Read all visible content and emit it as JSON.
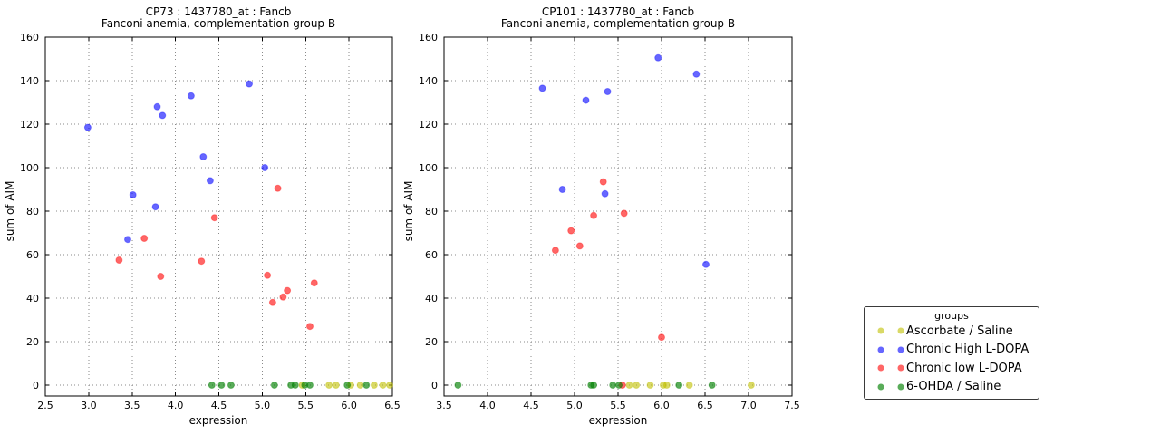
{
  "legend": {
    "title": "groups",
    "entries": [
      {
        "label": "Ascorbate / Saline",
        "color": "#bfbf00",
        "alpha": 0.6
      },
      {
        "label": "Chronic High L-DOPA",
        "color": "#0000ff",
        "alpha": 0.6
      },
      {
        "label": "Chronic low L-DOPA",
        "color": "#ff0000",
        "alpha": 0.6
      },
      {
        "label": "6-OHDA / Saline",
        "color": "#008000",
        "alpha": 0.65
      }
    ]
  },
  "chart_data": [
    {
      "type": "scatter",
      "title": "CP73 : 1437780_at : Fancb",
      "subtitle": "Fanconi anemia, complementation group B",
      "xlabel": "expression",
      "ylabel": "sum of AIM",
      "xlim": [
        2.5,
        6.5
      ],
      "ylim": [
        0,
        160
      ],
      "xticks": [
        "2.5",
        "3.0",
        "3.5",
        "4.0",
        "4.5",
        "5.0",
        "5.5",
        "6.0",
        "6.5"
      ],
      "yticks": [
        "0",
        "20",
        "40",
        "60",
        "80",
        "100",
        "120",
        "140",
        "160"
      ],
      "grid": true,
      "series": [
        {
          "name": "Ascorbate / Saline",
          "color": "#bfbf00",
          "alpha": 0.6,
          "points": [
            [
              5.46,
              0
            ],
            [
              5.77,
              0
            ],
            [
              5.85,
              0
            ],
            [
              6.02,
              0
            ],
            [
              6.13,
              0
            ],
            [
              6.29,
              0
            ],
            [
              6.39,
              0
            ],
            [
              6.47,
              0
            ]
          ]
        },
        {
          "name": "Chronic High L-DOPA",
          "color": "#0000ff",
          "alpha": 0.6,
          "points": [
            [
              2.99,
              118.5
            ],
            [
              3.45,
              67
            ],
            [
              3.51,
              87.5
            ],
            [
              3.77,
              82
            ],
            [
              3.79,
              128
            ],
            [
              3.85,
              124
            ],
            [
              4.18,
              133
            ],
            [
              4.32,
              105
            ],
            [
              4.4,
              94
            ],
            [
              4.85,
              138.5
            ],
            [
              5.03,
              100
            ]
          ]
        },
        {
          "name": "Chronic low L-DOPA",
          "color": "#ff0000",
          "alpha": 0.6,
          "points": [
            [
              3.35,
              57.5
            ],
            [
              3.64,
              67.5
            ],
            [
              3.83,
              50
            ],
            [
              4.3,
              57
            ],
            [
              4.45,
              77
            ],
            [
              5.06,
              50.5
            ],
            [
              5.12,
              38
            ],
            [
              5.18,
              90.5
            ],
            [
              5.24,
              40.5
            ],
            [
              5.29,
              43.5
            ],
            [
              5.55,
              27
            ],
            [
              5.6,
              47
            ]
          ]
        },
        {
          "name": "6-OHDA / Saline",
          "color": "#008000",
          "alpha": 0.65,
          "points": [
            [
              4.42,
              0
            ],
            [
              4.53,
              0
            ],
            [
              4.64,
              0
            ],
            [
              5.14,
              0
            ],
            [
              5.33,
              0
            ],
            [
              5.38,
              0
            ],
            [
              5.49,
              0
            ],
            [
              5.55,
              0
            ],
            [
              5.98,
              0
            ],
            [
              6.2,
              0
            ]
          ]
        }
      ]
    },
    {
      "type": "scatter",
      "title": "CP101 : 1437780_at : Fancb",
      "subtitle": "Fanconi anemia, complementation group B",
      "xlabel": "expression",
      "ylabel": "sum of AIM",
      "xlim": [
        3.5,
        7.5
      ],
      "ylim": [
        0,
        160
      ],
      "xticks": [
        "3.5",
        "4.0",
        "4.5",
        "5.0",
        "5.5",
        "6.0",
        "6.5",
        "7.0",
        "7.5"
      ],
      "yticks": [
        "0",
        "20",
        "40",
        "60",
        "80",
        "100",
        "120",
        "140",
        "160"
      ],
      "grid": true,
      "series": [
        {
          "name": "Ascorbate / Saline",
          "color": "#bfbf00",
          "alpha": 0.6,
          "points": [
            [
              5.63,
              0
            ],
            [
              5.71,
              0
            ],
            [
              5.87,
              0
            ],
            [
              6.02,
              0
            ],
            [
              6.06,
              0
            ],
            [
              6.32,
              0
            ],
            [
              7.03,
              0
            ]
          ]
        },
        {
          "name": "Chronic High L-DOPA",
          "color": "#0000ff",
          "alpha": 0.6,
          "points": [
            [
              4.63,
              136.5
            ],
            [
              4.86,
              90
            ],
            [
              5.13,
              131
            ],
            [
              5.35,
              88
            ],
            [
              5.38,
              135
            ],
            [
              5.96,
              150.5
            ],
            [
              6.4,
              143
            ],
            [
              6.51,
              55.5
            ]
          ]
        },
        {
          "name": "Chronic low L-DOPA",
          "color": "#ff0000",
          "alpha": 0.6,
          "points": [
            [
              4.78,
              62
            ],
            [
              4.96,
              71
            ],
            [
              5.06,
              64
            ],
            [
              5.22,
              78
            ],
            [
              5.33,
              93.5
            ],
            [
              5.55,
              0
            ],
            [
              5.57,
              79
            ],
            [
              6.0,
              22
            ]
          ]
        },
        {
          "name": "6-OHDA / Saline",
          "color": "#008000",
          "alpha": 0.65,
          "points": [
            [
              3.66,
              0
            ],
            [
              5.19,
              0
            ],
            [
              5.22,
              0
            ],
            [
              5.44,
              0
            ],
            [
              5.51,
              0
            ],
            [
              6.2,
              0
            ],
            [
              6.58,
              0
            ]
          ]
        }
      ]
    }
  ]
}
